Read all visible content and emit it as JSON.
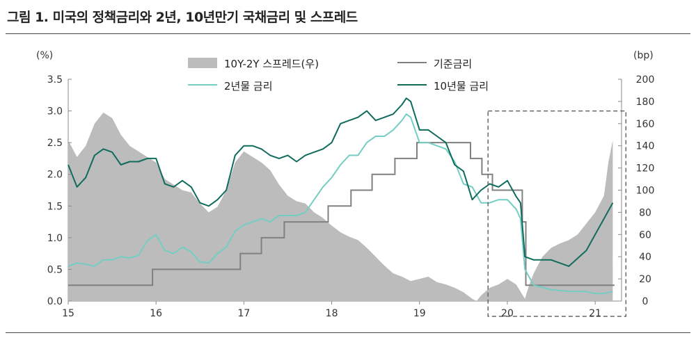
{
  "title": "그림 1. 미국의 정책금리와 2년, 10년만기 국채금리 및 스프레드",
  "chart_data": {
    "type": "line",
    "ylabel_left": "(%)",
    "ylabel_right": "(bp)",
    "ylim_left": [
      0,
      3.5
    ],
    "ylim_right": [
      0,
      200
    ],
    "yticks_left": [
      "0.0",
      "0.5",
      "1.0",
      "1.5",
      "2.0",
      "2.5",
      "3.0",
      "3.5"
    ],
    "yticks_right": [
      "0",
      "20",
      "40",
      "60",
      "80",
      "100",
      "120",
      "140",
      "160",
      "180",
      "200"
    ],
    "xticks": [
      "15",
      "16",
      "17",
      "18",
      "19",
      "20",
      "21"
    ],
    "xlim": [
      2015.0,
      2021.3
    ],
    "colors": {
      "spread": "#bcbcbc",
      "fed": "#808080",
      "y2": "#74cdc3",
      "y10": "#0f6b5c",
      "box": "#666666"
    },
    "legend": [
      "10Y-2Y 스프레드(우)",
      "기준금리",
      "2년물 금리",
      "10년물 금리"
    ],
    "series": [
      {
        "name": "10Y-2Y 스프레드(우)",
        "kind": "area",
        "axis": "right",
        "x": [
          2015.0,
          2015.1,
          2015.2,
          2015.3,
          2015.4,
          2015.5,
          2015.6,
          2015.7,
          2015.8,
          2015.9,
          2016.0,
          2016.1,
          2016.2,
          2016.3,
          2016.4,
          2016.5,
          2016.6,
          2016.7,
          2016.8,
          2016.9,
          2017.0,
          2017.1,
          2017.2,
          2017.3,
          2017.4,
          2017.5,
          2017.6,
          2017.7,
          2017.8,
          2017.9,
          2018.0,
          2018.1,
          2018.2,
          2018.3,
          2018.4,
          2018.5,
          2018.6,
          2018.7,
          2018.8,
          2018.9,
          2019.0,
          2019.1,
          2019.2,
          2019.3,
          2019.4,
          2019.5,
          2019.6,
          2019.65,
          2019.7,
          2019.8,
          2019.9,
          2020.0,
          2020.1,
          2020.2,
          2020.25,
          2020.3,
          2020.4,
          2020.5,
          2020.6,
          2020.7,
          2020.8,
          2020.9,
          2021.0,
          2021.1,
          2021.15,
          2021.2
        ],
        "values": [
          145,
          130,
          140,
          160,
          170,
          165,
          150,
          140,
          135,
          130,
          125,
          110,
          105,
          100,
          98,
          88,
          80,
          85,
          100,
          125,
          135,
          130,
          125,
          118,
          105,
          95,
          90,
          88,
          80,
          75,
          68,
          62,
          58,
          55,
          48,
          40,
          32,
          25,
          22,
          18,
          20,
          22,
          17,
          15,
          12,
          8,
          2,
          0,
          5,
          12,
          15,
          20,
          15,
          2,
          15,
          25,
          40,
          48,
          52,
          55,
          60,
          70,
          80,
          95,
          125,
          145
        ]
      },
      {
        "name": "기준금리",
        "kind": "step",
        "axis": "left",
        "x": [
          2015.0,
          2015.96,
          2016.96,
          2017.2,
          2017.46,
          2017.96,
          2018.22,
          2018.46,
          2018.72,
          2018.97,
          2019.58,
          2019.71,
          2019.83,
          2020.17,
          2020.21,
          2021.22
        ],
        "values": [
          0.25,
          0.5,
          0.75,
          1.0,
          1.25,
          1.5,
          1.75,
          2.0,
          2.25,
          2.5,
          2.25,
          2.0,
          1.75,
          1.25,
          0.25,
          0.25
        ]
      },
      {
        "name": "2년물 금리",
        "kind": "line",
        "axis": "left",
        "x": [
          2015.0,
          2015.1,
          2015.2,
          2015.3,
          2015.4,
          2015.5,
          2015.6,
          2015.7,
          2015.8,
          2015.9,
          2016.0,
          2016.1,
          2016.2,
          2016.3,
          2016.4,
          2016.5,
          2016.6,
          2016.7,
          2016.8,
          2016.9,
          2017.0,
          2017.1,
          2017.2,
          2017.3,
          2017.4,
          2017.5,
          2017.6,
          2017.7,
          2017.8,
          2017.9,
          2018.0,
          2018.1,
          2018.2,
          2018.3,
          2018.4,
          2018.5,
          2018.6,
          2018.7,
          2018.8,
          2018.85,
          2018.9,
          2019.0,
          2019.1,
          2019.2,
          2019.3,
          2019.4,
          2019.5,
          2019.6,
          2019.7,
          2019.8,
          2019.9,
          2020.0,
          2020.1,
          2020.15,
          2020.2,
          2020.3,
          2020.5,
          2020.7,
          2020.9,
          2021.0,
          2021.1,
          2021.2
        ],
        "values": [
          0.55,
          0.6,
          0.58,
          0.55,
          0.65,
          0.65,
          0.7,
          0.68,
          0.72,
          0.95,
          1.05,
          0.8,
          0.75,
          0.85,
          0.78,
          0.62,
          0.6,
          0.75,
          0.85,
          1.1,
          1.2,
          1.25,
          1.3,
          1.25,
          1.35,
          1.35,
          1.35,
          1.4,
          1.6,
          1.8,
          1.95,
          2.15,
          2.3,
          2.3,
          2.5,
          2.6,
          2.6,
          2.7,
          2.85,
          2.95,
          2.9,
          2.5,
          2.5,
          2.45,
          2.4,
          2.2,
          1.85,
          1.8,
          1.55,
          1.55,
          1.6,
          1.6,
          1.45,
          1.3,
          0.5,
          0.25,
          0.18,
          0.15,
          0.15,
          0.12,
          0.12,
          0.15
        ]
      },
      {
        "name": "10년물 금리",
        "kind": "line",
        "axis": "left",
        "x": [
          2015.0,
          2015.1,
          2015.2,
          2015.3,
          2015.4,
          2015.5,
          2015.6,
          2015.7,
          2015.8,
          2015.9,
          2016.0,
          2016.1,
          2016.2,
          2016.3,
          2016.4,
          2016.5,
          2016.6,
          2016.7,
          2016.8,
          2016.9,
          2017.0,
          2017.1,
          2017.2,
          2017.3,
          2017.4,
          2017.5,
          2017.6,
          2017.7,
          2017.8,
          2017.9,
          2018.0,
          2018.1,
          2018.2,
          2018.3,
          2018.4,
          2018.5,
          2018.6,
          2018.7,
          2018.8,
          2018.85,
          2018.9,
          2019.0,
          2019.1,
          2019.2,
          2019.3,
          2019.4,
          2019.5,
          2019.6,
          2019.7,
          2019.8,
          2019.9,
          2020.0,
          2020.1,
          2020.15,
          2020.2,
          2020.3,
          2020.5,
          2020.7,
          2020.9,
          2021.0,
          2021.1,
          2021.2
        ],
        "values": [
          2.15,
          1.8,
          1.95,
          2.3,
          2.4,
          2.35,
          2.15,
          2.2,
          2.2,
          2.25,
          2.25,
          1.85,
          1.8,
          1.9,
          1.8,
          1.55,
          1.5,
          1.6,
          1.75,
          2.3,
          2.45,
          2.45,
          2.4,
          2.3,
          2.25,
          2.3,
          2.2,
          2.3,
          2.35,
          2.4,
          2.5,
          2.8,
          2.85,
          2.9,
          3.0,
          2.85,
          2.9,
          2.95,
          3.1,
          3.2,
          3.15,
          2.7,
          2.7,
          2.6,
          2.5,
          2.15,
          2.05,
          1.6,
          1.75,
          1.85,
          1.8,
          1.9,
          1.65,
          1.55,
          0.7,
          0.65,
          0.65,
          0.55,
          0.8,
          1.05,
          1.3,
          1.55
        ]
      }
    ],
    "highlight_box": {
      "x": [
        2019.78,
        2021.35
      ],
      "y_left": [
        0,
        3.0
      ]
    }
  }
}
